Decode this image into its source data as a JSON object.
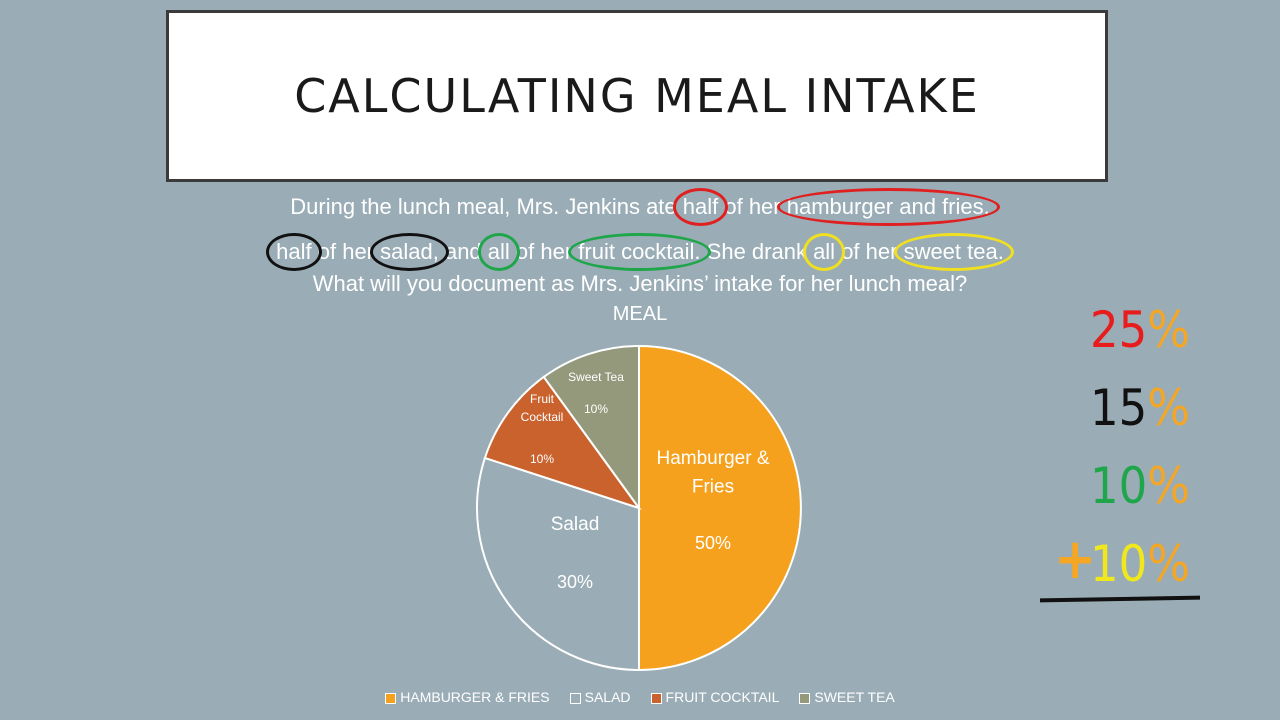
{
  "slide": {
    "title": "CALCULATING MEAL INTAKE",
    "question_line1": [
      {
        "text": "During the lunch meal, Mrs. Jenkins ate ",
        "mark": null
      },
      {
        "text": "half",
        "mark": "#e02020"
      },
      {
        "text": " of her ",
        "mark": null
      },
      {
        "text": "hamburger and fries.",
        "mark": "#e02020"
      }
    ],
    "question_line2": [
      {
        "text": "half",
        "mark": "#111111"
      },
      {
        "text": " of her ",
        "mark": null
      },
      {
        "text": "salad,",
        "mark": "#111111"
      },
      {
        "text": " and ",
        "mark": null
      },
      {
        "text": "all",
        "mark": "#1fa54a"
      },
      {
        "text": " of her ",
        "mark": null
      },
      {
        "text": "fruit cocktail.",
        "mark": "#1fa54a"
      },
      {
        "text": " She drank ",
        "mark": null
      },
      {
        "text": "all",
        "mark": "#f0e020"
      },
      {
        "text": " of her ",
        "mark": null
      },
      {
        "text": "sweet tea.",
        "mark": "#f0e020"
      }
    ],
    "question_line3": "What will you document as Mrs. Jenkins’ intake for her lunch meal?"
  },
  "chart_data": {
    "type": "pie",
    "title": "MEAL",
    "slices": [
      {
        "label": "Hamburger & Fries",
        "legend": "HAMBURGER & FRIES",
        "value": 50,
        "value_label": "50%",
        "color": "#f5a11e",
        "text_color": "#ffffff"
      },
      {
        "label": "Salad",
        "legend": "SALAD",
        "value": 30,
        "value_label": "30%",
        "color": "#9aadb6",
        "text_color": "#ffffff"
      },
      {
        "label": "Fruit Cocktail",
        "legend": "FRUIT COCKTAIL",
        "value": 10,
        "value_label": "10%",
        "color": "#c9622d",
        "text_color": "#ffffff"
      },
      {
        "label": "Sweet Tea",
        "legend": "SWEET TEA",
        "value": 10,
        "value_label": "10%",
        "color": "#95997b",
        "text_color": "#ffffff"
      }
    ],
    "legend_placement": "bottom"
  },
  "sum": {
    "rows": [
      {
        "number": "25",
        "percent": "%",
        "color": "#e81c1c"
      },
      {
        "number": "15",
        "percent": "%",
        "color": "#111111"
      },
      {
        "number": "10",
        "percent": "%",
        "color": "#1fa54a"
      },
      {
        "number": "10",
        "percent": "%",
        "color": "#f0e81c"
      }
    ],
    "operator": "+",
    "operator_color": "#f5a623",
    "percent_color": "#f5a623"
  }
}
